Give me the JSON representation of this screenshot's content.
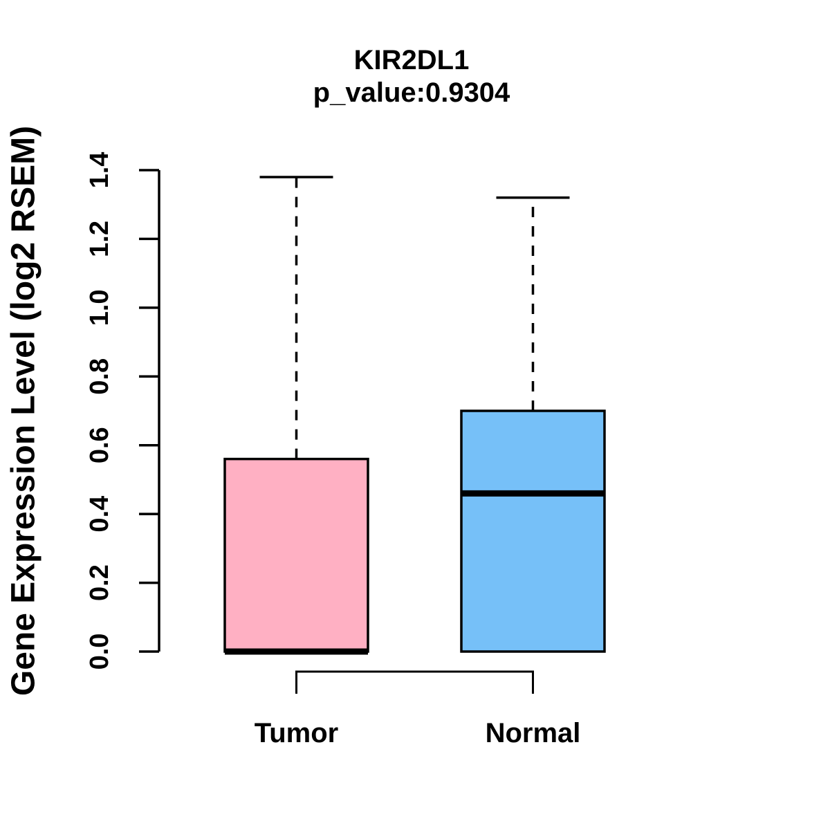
{
  "title": {
    "gene": "KIR2DL1",
    "p_value_line": "p_value:0.9304"
  },
  "chart_data": {
    "type": "boxplot",
    "title": "KIR2DL1",
    "subtitle": "p_value:0.9304",
    "ylabel": "Gene Expression Level (log2 RSEM)",
    "ylim": [
      0.0,
      1.4
    ],
    "yticks": [
      0.0,
      0.2,
      0.4,
      0.6,
      0.8,
      1.0,
      1.2,
      1.4
    ],
    "grid": false,
    "categories": [
      "Tumor",
      "Normal"
    ],
    "series": [
      {
        "name": "Tumor",
        "color": "#FFB0C3",
        "lower_whisker": 0.0,
        "q1": 0.0,
        "median": 0.0,
        "q3": 0.56,
        "upper_whisker": 1.38
      },
      {
        "name": "Normal",
        "color": "#76C0F8",
        "lower_whisker": 0.0,
        "q1": 0.0,
        "median": 0.46,
        "q3": 0.7,
        "upper_whisker": 1.32
      }
    ],
    "comparison_bracket": {
      "between": [
        "Tumor",
        "Normal"
      ]
    },
    "line_color": "#000000",
    "background_color": "#ffffff"
  }
}
